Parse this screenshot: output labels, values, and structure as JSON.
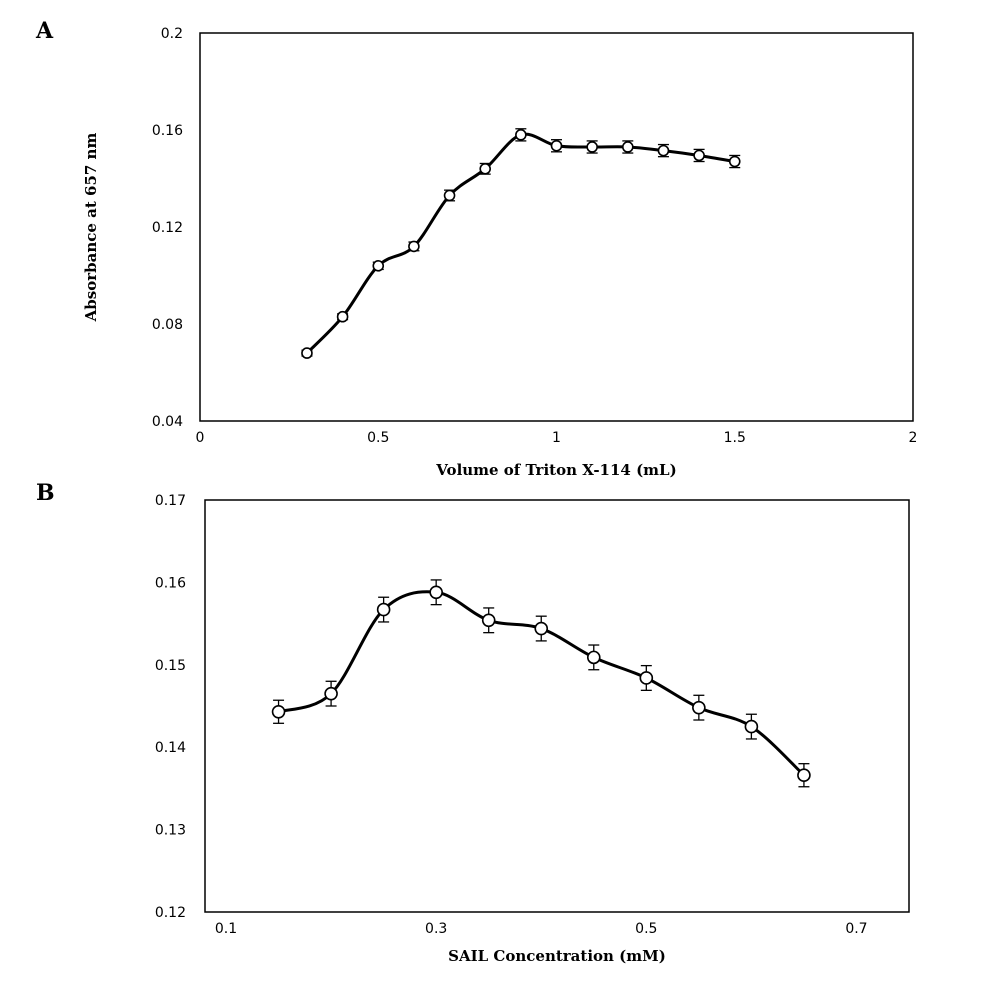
{
  "chart_data": [
    {
      "panel_label": "A",
      "type": "line",
      "xlabel": "Volume of Triton X-114 (mL)",
      "ylabel": "Absorbance at 657 nm",
      "xlim": [
        0,
        2
      ],
      "ylim": [
        0.04,
        0.2
      ],
      "xticks": [
        0,
        0.5,
        1,
        1.5,
        2
      ],
      "xtick_labels": [
        "0",
        "0.5",
        "1",
        "1.5",
        "2"
      ],
      "yticks": [
        0.04,
        0.08,
        0.12,
        0.16,
        0.2
      ],
      "ytick_labels": [
        "0.04",
        "0.08",
        "0.12",
        "0.16",
        "0.2"
      ],
      "grid": false,
      "marker": "open-circle",
      "error_bars": true,
      "x": [
        0.3,
        0.4,
        0.5,
        0.6,
        0.7,
        0.8,
        0.9,
        1.0,
        1.1,
        1.2,
        1.3,
        1.4,
        1.5
      ],
      "y": [
        0.068,
        0.083,
        0.104,
        0.112,
        0.133,
        0.144,
        0.158,
        0.1535,
        0.153,
        0.153,
        0.1515,
        0.1495,
        0.147
      ],
      "error": [
        0.0012,
        0.0012,
        0.0015,
        0.0018,
        0.0022,
        0.0022,
        0.0025,
        0.0025,
        0.0025,
        0.0025,
        0.0025,
        0.0025,
        0.0025
      ]
    },
    {
      "panel_label": "B",
      "type": "line",
      "xlabel": "SAIL Concentration (mM)",
      "ylabel": "",
      "xlim": [
        0.08,
        0.75
      ],
      "ylim": [
        0.12,
        0.17
      ],
      "xticks": [
        0.1,
        0.3,
        0.5,
        0.7
      ],
      "xtick_labels": [
        "0.1",
        "0.3",
        "0.5",
        "0.7"
      ],
      "yticks": [
        0.12,
        0.13,
        0.14,
        0.15,
        0.16,
        0.17
      ],
      "ytick_labels": [
        "0.12",
        "0.13",
        "0.14",
        "0.15",
        "0.16",
        "0.17"
      ],
      "grid": false,
      "marker": "open-circle",
      "error_bars": true,
      "x": [
        0.15,
        0.2,
        0.25,
        0.3,
        0.35,
        0.4,
        0.45,
        0.5,
        0.55,
        0.6,
        0.65
      ],
      "y": [
        0.1443,
        0.1465,
        0.1567,
        0.1588,
        0.1554,
        0.1544,
        0.1509,
        0.1484,
        0.1448,
        0.1425,
        0.1366
      ],
      "error": [
        0.0014,
        0.0015,
        0.0015,
        0.0015,
        0.0015,
        0.0015,
        0.0015,
        0.0015,
        0.0015,
        0.0015,
        0.0014
      ]
    }
  ]
}
